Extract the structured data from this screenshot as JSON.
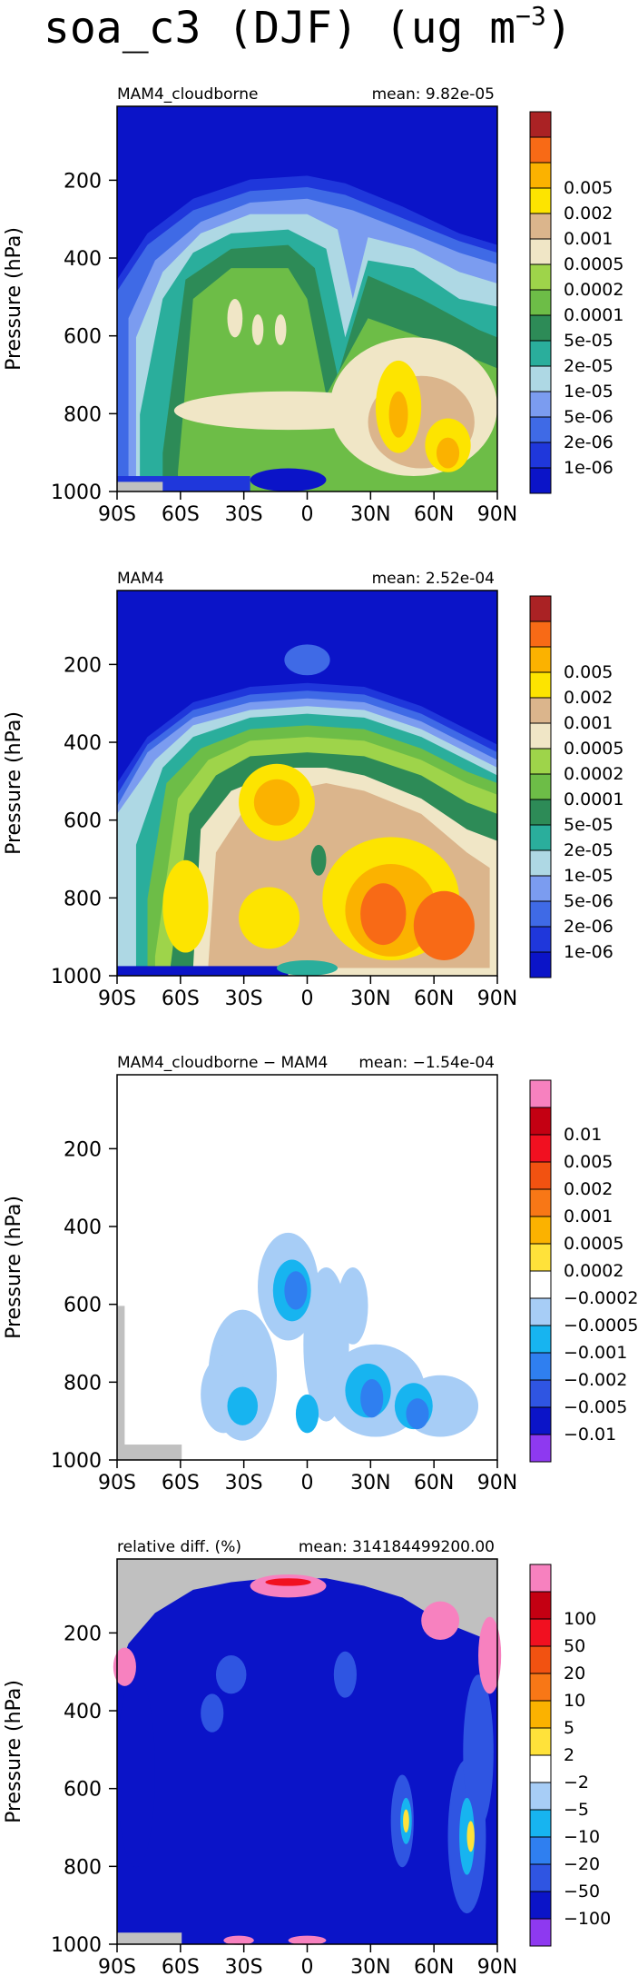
{
  "figure_title": "soa_c3 (DJF) (ug m",
  "figure_title_sup": "−3",
  "figure_title_end": ")",
  "colors": {
    "abs_levels": [
      "#0b14c8",
      "#1f37db",
      "#3f6ae6",
      "#7b9cf0",
      "#aed8e4",
      "#2aae9c",
      "#2d8b57",
      "#6dbd47",
      "#9ed44a",
      "#f0e6c6",
      "#dbb58c",
      "#fde400",
      "#fbb200",
      "#f86a16",
      "#aa2224"
    ],
    "diff_levels": [
      "#8e39f0",
      "#0b14c8",
      "#2f55e2",
      "#2f7ff0",
      "#17b4f0",
      "#a7cdf6",
      "#ffffff",
      "#ffe23a",
      "#fbb200",
      "#f87716",
      "#f25211",
      "#f11020",
      "#c40012",
      "#f781bf"
    ],
    "missing": "#c0c0c0"
  },
  "chart_data": [
    {
      "type": "heatmap",
      "title_left": "MAM4_cloudborne",
      "title_right": "mean: 9.82e-05",
      "xlabel": "",
      "ylabel": "Pressure (hPa)",
      "x_ticks": [
        "90S",
        "60S",
        "30S",
        "0",
        "30N",
        "60N",
        "90N"
      ],
      "x_range": [
        -90,
        90
      ],
      "y_ticks": [
        "200",
        "400",
        "600",
        "800",
        "1000"
      ],
      "y_range": [
        1000,
        10
      ],
      "colorbar_labels": [
        "1e-06",
        "2e-06",
        "5e-06",
        "1e-05",
        "2e-05",
        "5e-05",
        "0.0001",
        "0.0002",
        "0.0005",
        "0.001",
        "0.002",
        "0.005"
      ],
      "grid": false
    },
    {
      "type": "heatmap",
      "title_left": "MAM4",
      "title_right": "mean: 2.52e-04",
      "xlabel": "",
      "ylabel": "Pressure (hPa)",
      "x_ticks": [
        "90S",
        "60S",
        "30S",
        "0",
        "30N",
        "60N",
        "90N"
      ],
      "x_range": [
        -90,
        90
      ],
      "y_ticks": [
        "200",
        "400",
        "600",
        "800",
        "1000"
      ],
      "y_range": [
        1000,
        10
      ],
      "colorbar_labels": [
        "1e-06",
        "2e-06",
        "5e-06",
        "1e-05",
        "2e-05",
        "5e-05",
        "0.0001",
        "0.0002",
        "0.0005",
        "0.001",
        "0.002",
        "0.005"
      ],
      "grid": false
    },
    {
      "type": "heatmap",
      "title_left": "MAM4_cloudborne − MAM4",
      "title_right": "mean: −1.54e-04",
      "xlabel": "",
      "ylabel": "Pressure (hPa)",
      "x_ticks": [
        "90S",
        "60S",
        "30S",
        "0",
        "30N",
        "60N",
        "90N"
      ],
      "x_range": [
        -90,
        90
      ],
      "y_ticks": [
        "200",
        "400",
        "600",
        "800",
        "1000"
      ],
      "y_range": [
        1000,
        10
      ],
      "colorbar_labels": [
        "−0.01",
        "−0.005",
        "−0.002",
        "−0.001",
        "−0.0005",
        "−0.0002",
        "0.0002",
        "0.0005",
        "0.001",
        "0.002",
        "0.005",
        "0.01"
      ],
      "grid": false
    },
    {
      "type": "heatmap",
      "title_left": "relative diff. (%)",
      "title_right": "mean: 314184499200.00",
      "xlabel": "",
      "ylabel": "Pressure (hPa)",
      "x_ticks": [
        "90S",
        "60S",
        "30S",
        "0",
        "30N",
        "60N",
        "90N"
      ],
      "x_range": [
        -90,
        90
      ],
      "y_ticks": [
        "200",
        "400",
        "600",
        "800",
        "1000"
      ],
      "y_range": [
        1000,
        10
      ],
      "colorbar_labels": [
        "−100",
        "−50",
        "−20",
        "−10",
        "−5",
        "−2",
        "2",
        "5",
        "10",
        "20",
        "50",
        "100"
      ],
      "grid": false
    }
  ]
}
